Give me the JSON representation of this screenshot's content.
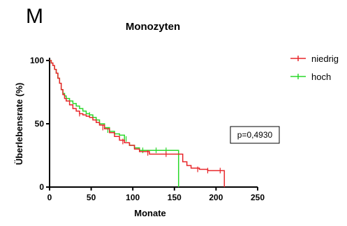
{
  "panel_label": "M",
  "chart_data": {
    "type": "line",
    "title": "Monozyten",
    "xlabel": "Monate",
    "ylabel": "Überlebensrate (%)",
    "xlim": [
      0,
      250
    ],
    "ylim": [
      0,
      100
    ],
    "xticks": [
      "0",
      "50",
      "100",
      "150",
      "200",
      "250"
    ],
    "yticks": [
      "0",
      "50",
      "100"
    ],
    "grid": false,
    "legend_position": "top-right",
    "annotation": "p=0,4930",
    "series": [
      {
        "name": "niedrig",
        "color": "#e8262a",
        "x": [
          0,
          2,
          4,
          6,
          8,
          10,
          12,
          14,
          16,
          18,
          20,
          24,
          28,
          32,
          36,
          40,
          44,
          48,
          52,
          56,
          60,
          66,
          72,
          78,
          84,
          90,
          96,
          102,
          108,
          120,
          132,
          144,
          156,
          160,
          165,
          170,
          180,
          190,
          200,
          210,
          210
        ],
        "y": [
          100,
          98,
          96,
          93,
          90,
          86,
          82,
          77,
          73,
          70,
          68,
          65,
          62,
          60,
          58,
          57,
          56,
          55,
          53,
          51,
          49,
          46,
          43,
          40,
          37,
          35,
          33,
          30,
          28,
          26,
          26,
          26,
          26,
          20,
          17,
          15,
          14,
          13,
          13,
          13,
          0
        ],
        "censor_x": [
          36,
          64,
          88,
          118,
          140,
          178,
          190,
          205
        ],
        "censor_y": [
          58,
          47,
          36,
          27,
          26,
          14,
          13,
          13
        ]
      },
      {
        "name": "hoch",
        "color": "#2ad82a",
        "x": [
          0,
          2,
          4,
          6,
          8,
          10,
          12,
          14,
          16,
          18,
          20,
          24,
          28,
          32,
          36,
          40,
          44,
          48,
          52,
          56,
          60,
          66,
          72,
          78,
          84,
          90,
          96,
          102,
          108,
          120,
          132,
          144,
          155,
          155
        ],
        "y": [
          100,
          98,
          96,
          93,
          90,
          86,
          82,
          77,
          74,
          72,
          70,
          68,
          66,
          64,
          62,
          60,
          58,
          57,
          55,
          53,
          50,
          47,
          44,
          42,
          41,
          35,
          33,
          31,
          29,
          29,
          29,
          29,
          29,
          0
        ],
        "censor_x": [
          48,
          70,
          92,
          112,
          128,
          140
        ],
        "censor_y": [
          57,
          45,
          38,
          29,
          29,
          29
        ]
      }
    ]
  }
}
